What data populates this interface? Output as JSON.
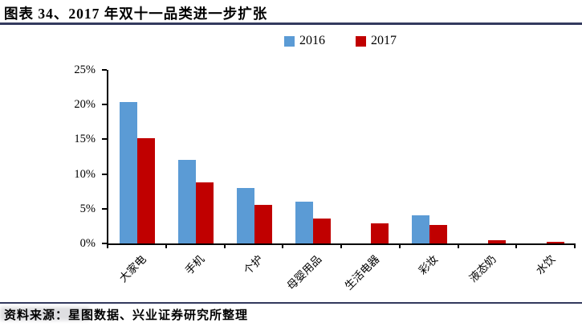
{
  "header": {
    "title": "图表 34、2017 年双十一品类进一步扩张"
  },
  "footer": {
    "source": "资料来源：星图数据、兴业证券研究所整理"
  },
  "colors": {
    "rule": "#333A5E",
    "axis": "#000000",
    "series_2016": "#5B9BD5",
    "series_2017": "#C00000"
  },
  "chart_data": {
    "type": "bar",
    "title": "图表 34、2017 年双十一品类进一步扩张",
    "categories": [
      "大家电",
      "手机",
      "个护",
      "母婴用品",
      "生活电器",
      "彩妆",
      "液态奶",
      "水饮"
    ],
    "series": [
      {
        "name": "2016",
        "color": "#5B9BD5",
        "values": [
          20.4,
          12.0,
          8.0,
          6.0,
          0,
          4.0,
          0,
          0
        ]
      },
      {
        "name": "2017",
        "color": "#C00000",
        "values": [
          15.2,
          8.8,
          5.6,
          3.6,
          2.9,
          2.7,
          0.5,
          0.2
        ]
      }
    ],
    "xlabel": "",
    "ylabel": "",
    "ylim": [
      0,
      25
    ],
    "ytick_labels": [
      "0%",
      "5%",
      "10%",
      "15%",
      "20%",
      "25%"
    ],
    "grid": false,
    "legend_position": "top-center",
    "bar_unit": "percent"
  }
}
